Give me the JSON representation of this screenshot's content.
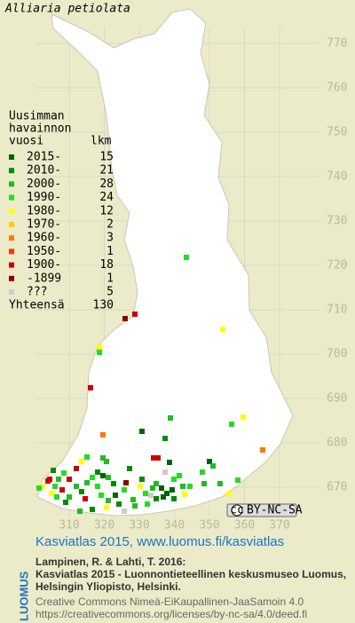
{
  "title": "Alliaria petiolata",
  "legend": {
    "header": [
      "Uusimman",
      "havainnon",
      "vuosi"
    ],
    "count_header": "lkm",
    "items": [
      {
        "label": "2015-",
        "count": "15",
        "color": "#006400"
      },
      {
        "label": "2010-",
        "count": "21",
        "color": "#008c00"
      },
      {
        "label": "2000-",
        "count": "28",
        "color": "#22bb22"
      },
      {
        "label": "1990-",
        "count": "24",
        "color": "#22dd22"
      },
      {
        "label": "1980-",
        "count": "12",
        "color": "#ffff00"
      },
      {
        "label": "1970-",
        "count": "2",
        "color": "#ffcc00"
      },
      {
        "label": "1960-",
        "count": "3",
        "color": "#ff7700"
      },
      {
        "label": "1950-",
        "count": "1",
        "color": "#ff3300"
      },
      {
        "label": "1900-",
        "count": "18",
        "color": "#cc0000"
      },
      {
        "label": "-1899",
        "count": "1",
        "color": "#8b0000"
      },
      {
        "label": "???",
        "count": "5",
        "color": "#cccccc"
      }
    ],
    "total_label": "Yhteensä",
    "total": "130"
  },
  "xticks": [
    310,
    320,
    330,
    340,
    350,
    360,
    370
  ],
  "yticks": [
    670,
    680,
    690,
    700,
    710,
    720,
    730,
    740,
    750,
    760,
    770
  ],
  "license_badge": "BY-NC-SA",
  "footer": {
    "logo": "LUOMUS",
    "headline": "Kasviatlas 2015, www.luomus.fi/kasviatlas",
    "citation": [
      "Lampinen, R. & Lahti, T. 2016:",
      "Kasviatlas 2015 - Luonnontieteellinen keskusmuseo Luomus,",
      "Helsingin Yliopisto, Helsinki."
    ],
    "license": [
      "Creative Commons Nimeä-EiKaupallinen-JaaSamoin 4.0",
      "https://creativecommons.org/licenses/by-nc-sa/4.0/deed.fi"
    ]
  }
}
